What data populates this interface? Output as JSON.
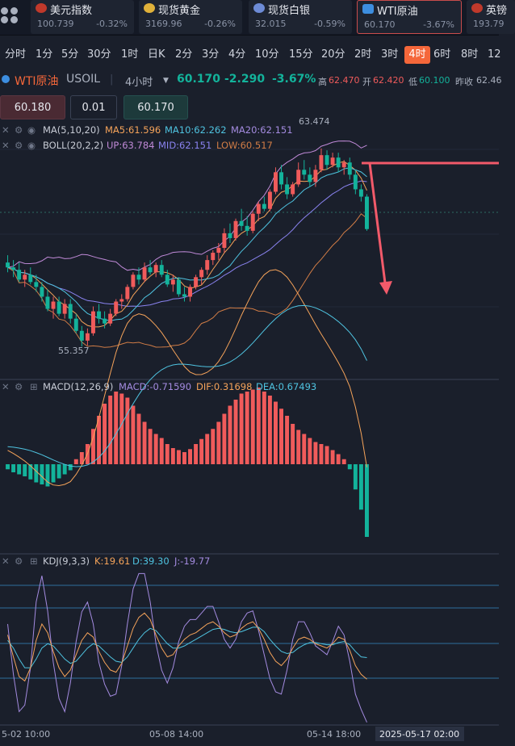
{
  "tickers": [
    {
      "name": "美元指数",
      "price": "100.739",
      "change": "-0.32%",
      "flag": "us-flag-icon",
      "flag_color": "#c0392b"
    },
    {
      "name": "现货黄金",
      "price": "3169.96",
      "change": "-0.26%",
      "flag": "gold-coin-icon",
      "flag_color": "#e0b13a"
    },
    {
      "name": "现货白银",
      "price": "32.015",
      "change": "-0.59%",
      "flag": "silver-coin-icon",
      "flag_color": "#6d8bd6"
    },
    {
      "name": "WTI原油",
      "price": "60.170",
      "change": "-3.67%",
      "flag": "oil-barrel-icon",
      "flag_color": "#3d8ee0"
    },
    {
      "name": "英镑",
      "price": "193.79",
      "change": "",
      "flag": "uk-flag-icon",
      "flag_color": "#c0392b"
    }
  ],
  "periods": [
    "分时",
    "1分",
    "5分",
    "30分",
    "1时",
    "日K",
    "2分",
    "3分",
    "4分",
    "10分",
    "15分",
    "20分",
    "2时",
    "3时",
    "4时",
    "6时",
    "8时",
    "12"
  ],
  "active_period": "4时",
  "instrument": {
    "name": "WTI原油",
    "code": "USOIL",
    "interval": "4小时",
    "price": "60.170",
    "change": "-2.290",
    "change_pct": "-3.67%",
    "high_label": "高",
    "high": "62.470",
    "open_label": "开",
    "open": "62.420",
    "low_label": "低",
    "low": "60.100",
    "prev_label": "昨收",
    "prev": "62.46"
  },
  "order": {
    "sell_price": "60.180",
    "lot": "0.01",
    "buy_price": "60.170"
  },
  "indicators": {
    "ma_label": "MA(5,10,20)",
    "ma5": "MA5:61.596",
    "ma10": "MA10:62.262",
    "ma20": "MA20:62.151",
    "boll_label": "BOLL(20,2,2)",
    "boll_up": "UP:63.784",
    "boll_mid": "MID:62.151",
    "boll_low": "LOW:60.517",
    "macd_label": "MACD(12,26,9)",
    "macd": "MACD:-0.71590",
    "dif": "DIF:0.31698",
    "dea": "DEA:0.67493",
    "kdj_label": "KDJ(9,3,3)",
    "k": "K:19.61",
    "d": "D:39.30",
    "j": "J:-19.77"
  },
  "annotations": {
    "high_mark": "63.474",
    "low_mark": "55.357"
  },
  "time_axis": [
    "5-02 10:00",
    "05-08 14:00",
    "05-14 18:00"
  ],
  "crosshair_time": "2025-05-17 02:00",
  "colors": {
    "up": "#f05b5b",
    "down": "#13b39b",
    "ma5": "#f5a35a",
    "ma10": "#4fc3e0",
    "ma20": "#a48be0",
    "boll_up": "#c08ad8",
    "boll_mid": "#8a83f0",
    "boll_low": "#d07c46",
    "accent": "#f5673a"
  },
  "chart_data": {
    "type": "candlestick",
    "price_range": [
      55.357,
      63.474
    ],
    "candles": [
      [
        58.8,
        59.1,
        58.4,
        58.6
      ],
      [
        58.6,
        58.9,
        58.2,
        58.5
      ],
      [
        58.5,
        58.8,
        58.0,
        58.1
      ],
      [
        58.1,
        58.5,
        57.8,
        58.3
      ],
      [
        58.3,
        58.6,
        57.9,
        58.0
      ],
      [
        58.0,
        58.3,
        57.6,
        57.8
      ],
      [
        57.8,
        58.0,
        57.2,
        57.4
      ],
      [
        57.4,
        57.7,
        56.8,
        56.9
      ],
      [
        56.9,
        57.4,
        56.5,
        57.2
      ],
      [
        57.2,
        57.4,
        56.6,
        56.7
      ],
      [
        56.7,
        57.3,
        56.5,
        57.1
      ],
      [
        57.1,
        57.3,
        56.3,
        56.5
      ],
      [
        56.5,
        56.7,
        55.9,
        56.0
      ],
      [
        56.0,
        56.2,
        55.357,
        55.6
      ],
      [
        55.6,
        56.1,
        55.4,
        55.9
      ],
      [
        55.9,
        57.0,
        55.8,
        56.8
      ],
      [
        56.8,
        57.1,
        56.3,
        56.5
      ],
      [
        56.5,
        56.8,
        56.1,
        56.3
      ],
      [
        56.3,
        56.9,
        56.2,
        56.7
      ],
      [
        56.7,
        57.3,
        56.6,
        57.2
      ],
      [
        57.2,
        57.5,
        56.9,
        57.3
      ],
      [
        57.3,
        57.9,
        57.2,
        57.8
      ],
      [
        57.8,
        58.4,
        57.7,
        58.3
      ],
      [
        58.3,
        58.6,
        57.9,
        58.1
      ],
      [
        58.1,
        58.8,
        58.0,
        58.6
      ],
      [
        58.6,
        58.9,
        58.3,
        58.4
      ],
      [
        58.4,
        58.8,
        58.2,
        58.7
      ],
      [
        58.7,
        58.9,
        58.2,
        58.3
      ],
      [
        58.3,
        58.5,
        57.8,
        57.9
      ],
      [
        57.9,
        58.3,
        57.6,
        58.1
      ],
      [
        58.1,
        58.2,
        57.4,
        57.5
      ],
      [
        57.5,
        57.8,
        57.2,
        57.4
      ],
      [
        57.4,
        57.9,
        57.2,
        57.8
      ],
      [
        57.8,
        58.3,
        57.7,
        58.2
      ],
      [
        58.2,
        58.6,
        57.9,
        58.5
      ],
      [
        58.5,
        59.1,
        58.3,
        58.9
      ],
      [
        58.9,
        59.3,
        58.7,
        59.2
      ],
      [
        59.2,
        59.6,
        58.9,
        59.4
      ],
      [
        59.4,
        60.2,
        59.2,
        60.0
      ],
      [
        60.0,
        60.4,
        59.6,
        59.8
      ],
      [
        59.8,
        60.6,
        59.7,
        60.5
      ],
      [
        60.5,
        61.0,
        60.1,
        60.3
      ],
      [
        60.3,
        60.7,
        59.9,
        60.1
      ],
      [
        60.1,
        60.9,
        60.0,
        60.8
      ],
      [
        60.8,
        61.3,
        60.5,
        61.2
      ],
      [
        61.2,
        61.5,
        60.9,
        61.0
      ],
      [
        61.0,
        61.8,
        60.9,
        61.7
      ],
      [
        61.7,
        62.7,
        61.6,
        62.5
      ],
      [
        62.5,
        62.8,
        61.8,
        62.0
      ],
      [
        62.0,
        62.3,
        61.4,
        61.6
      ],
      [
        61.6,
        62.1,
        61.5,
        62.0
      ],
      [
        62.0,
        62.9,
        61.9,
        62.6
      ],
      [
        62.6,
        63.0,
        62.2,
        62.4
      ],
      [
        62.4,
        62.7,
        61.9,
        62.1
      ],
      [
        62.1,
        62.8,
        61.9,
        62.6
      ],
      [
        62.6,
        63.474,
        62.5,
        63.2
      ],
      [
        63.2,
        63.4,
        62.6,
        62.8
      ],
      [
        62.8,
        63.3,
        62.7,
        63.1
      ],
      [
        63.1,
        63.3,
        62.5,
        62.7
      ],
      [
        62.7,
        63.0,
        62.4,
        62.9
      ],
      [
        62.9,
        63.1,
        62.2,
        62.4
      ],
      [
        62.4,
        62.6,
        61.6,
        61.8
      ],
      [
        61.8,
        62.0,
        61.3,
        61.5
      ],
      [
        61.5,
        61.6,
        60.1,
        60.17
      ]
    ],
    "macd_hist": [
      -0.05,
      -0.08,
      -0.1,
      -0.12,
      -0.15,
      -0.18,
      -0.2,
      -0.22,
      -0.18,
      -0.14,
      -0.1,
      -0.06,
      0.05,
      0.12,
      0.2,
      0.35,
      0.48,
      0.6,
      0.68,
      0.72,
      0.7,
      0.66,
      0.58,
      0.5,
      0.42,
      0.35,
      0.3,
      0.26,
      0.2,
      0.16,
      0.14,
      0.12,
      0.15,
      0.2,
      0.25,
      0.3,
      0.35,
      0.42,
      0.5,
      0.58,
      0.64,
      0.7,
      0.72,
      0.74,
      0.76,
      0.72,
      0.68,
      0.62,
      0.55,
      0.48,
      0.4,
      0.34,
      0.3,
      0.26,
      0.22,
      0.2,
      0.18,
      0.14,
      0.1,
      0.05,
      -0.05,
      -0.25,
      -0.45,
      -0.72
    ],
    "kdj_k": [
      60,
      40,
      22,
      18,
      30,
      55,
      70,
      62,
      45,
      30,
      22,
      28,
      42,
      55,
      62,
      58,
      45,
      35,
      28,
      26,
      34,
      50,
      66,
      76,
      80,
      74,
      60,
      48,
      40,
      42,
      50,
      56,
      60,
      62,
      66,
      70,
      72,
      68,
      62,
      58,
      60,
      66,
      70,
      72,
      66,
      56,
      44,
      36,
      32,
      38,
      48,
      56,
      58,
      56,
      52,
      50,
      48,
      52,
      58,
      56,
      46,
      32,
      24,
      19.61
    ],
    "kdj_d": [
      55,
      48,
      38,
      30,
      30,
      38,
      48,
      52,
      50,
      44,
      38,
      34,
      36,
      42,
      48,
      52,
      50,
      45,
      40,
      36,
      35,
      40,
      48,
      56,
      62,
      66,
      64,
      58,
      52,
      48,
      48,
      50,
      53,
      56,
      59,
      62,
      65,
      66,
      65,
      63,
      62,
      63,
      65,
      67,
      67,
      63,
      56,
      50,
      45,
      43,
      44,
      48,
      51,
      53,
      53,
      52,
      51,
      51,
      53,
      54,
      51,
      45,
      40,
      39.3
    ],
    "kdj_j": [
      70,
      24,
      -10,
      -4,
      30,
      90,
      114,
      82,
      35,
      2,
      -10,
      16,
      54,
      81,
      90,
      70,
      35,
      15,
      4,
      6,
      32,
      70,
      102,
      116,
      116,
      90,
      52,
      28,
      16,
      30,
      54,
      68,
      74,
      74,
      80,
      86,
      86,
      72,
      56,
      48,
      56,
      72,
      80,
      82,
      64,
      42,
      20,
      8,
      6,
      28,
      56,
      72,
      72,
      62,
      50,
      46,
      42,
      54,
      68,
      60,
      36,
      6,
      -8,
      -19.77
    ]
  }
}
